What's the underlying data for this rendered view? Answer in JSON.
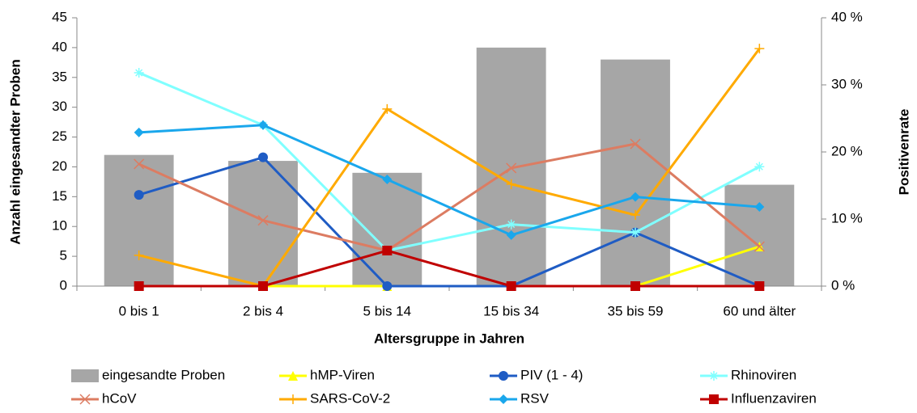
{
  "chart_data": {
    "type": "bar",
    "x_label": "Altersgruppe in Jahren",
    "y_label": "Anzahl eingesandter Proben",
    "y2_label": "Positivenrate",
    "categories": [
      "0 bis 1",
      "2 bis 4",
      "5 bis 14",
      "15 bis 34",
      "35 bis 59",
      "60 und älter"
    ],
    "ylim": [
      0,
      45
    ],
    "yticks": [
      0,
      5,
      10,
      15,
      20,
      25,
      30,
      35,
      40,
      45
    ],
    "y2lim": [
      0,
      40
    ],
    "y2ticks": [
      {
        "value": 0,
        "label": "0 %"
      },
      {
        "value": 10,
        "label": "10 %"
      },
      {
        "value": 20,
        "label": "20 %"
      },
      {
        "value": 30,
        "label": "30 %"
      },
      {
        "value": 40,
        "label": "40 %"
      }
    ],
    "series": [
      {
        "name": "eingesandte Proben",
        "type": "bar",
        "color": "#a6a6a6",
        "values": [
          22,
          21,
          19,
          40,
          38,
          17
        ]
      },
      {
        "name": "hMP-Viren",
        "type": "line",
        "axis": "y2",
        "marker": "triangle",
        "color": "#ffff00",
        "values": [
          0,
          0,
          0,
          0,
          0,
          5.9
        ]
      },
      {
        "name": "PIV (1 - 4)",
        "type": "line",
        "axis": "y2",
        "marker": "circle",
        "color": "#1f5cc4",
        "values": [
          13.6,
          19.2,
          0,
          0,
          8.0,
          0
        ]
      },
      {
        "name": "Rhinoviren",
        "type": "line",
        "axis": "y2",
        "marker": "asterisk",
        "color": "#80ffff",
        "values": [
          31.8,
          24.0,
          5.3,
          9.2,
          8.0,
          17.8
        ]
      },
      {
        "name": "hCoV",
        "type": "line",
        "axis": "y2",
        "marker": "x",
        "color": "#dc7c62",
        "values": [
          18.2,
          9.8,
          5.3,
          17.6,
          21.2,
          5.9
        ]
      },
      {
        "name": "SARS-CoV-2",
        "type": "line",
        "axis": "y2",
        "marker": "plus",
        "color": "#ffaa00",
        "values": [
          4.6,
          0,
          26.4,
          15.2,
          10.6,
          35.4
        ]
      },
      {
        "name": "RSV",
        "type": "line",
        "axis": "y2",
        "marker": "diamond",
        "color": "#1aa7ec",
        "values": [
          22.9,
          24.0,
          15.9,
          7.6,
          13.3,
          11.8
        ]
      },
      {
        "name": "Influenzaviren",
        "type": "line",
        "axis": "y2",
        "marker": "square",
        "color": "#c00000",
        "values": [
          0,
          0,
          5.3,
          0,
          0,
          0
        ]
      }
    ]
  }
}
